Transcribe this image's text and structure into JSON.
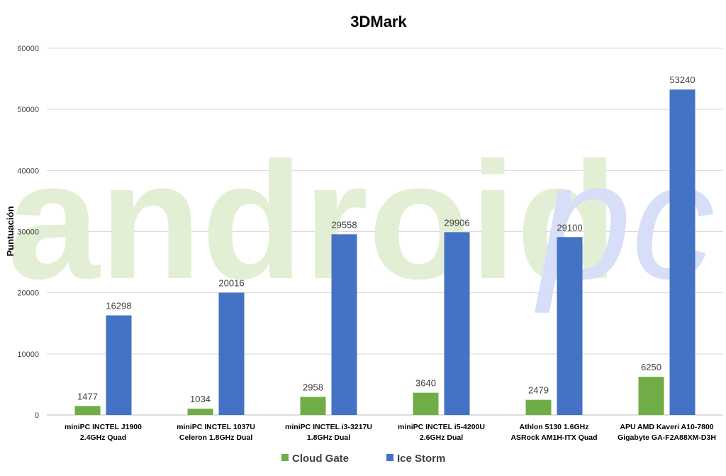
{
  "chart_data": {
    "type": "bar",
    "title": "3DMark",
    "ylabel": "Puntuación",
    "xlabel": "",
    "ylim": [
      0,
      60000
    ],
    "yticks": [
      0,
      10000,
      20000,
      30000,
      40000,
      50000,
      60000
    ],
    "grid": true,
    "legend_position": "bottom",
    "categories": [
      [
        "miniPC INCTEL J1900",
        "2.4GHz Quad"
      ],
      [
        "miniPC INCTEL 1037U",
        "Celeron 1.8GHz Dual"
      ],
      [
        "miniPC INCTEL i3-3217U",
        "1.8GHz Dual"
      ],
      [
        "miniPC INCTEL i5-4200U",
        "2.6GHz Dual"
      ],
      [
        "Athlon 5130 1.6GHz",
        "ASRock AM1H-ITX Quad"
      ],
      [
        "APU AMD Kaveri A10-7800",
        "Gigabyte GA-F2A88XM-D3H"
      ]
    ],
    "series": [
      {
        "name": "Cloud Gate",
        "color": "#70ad47",
        "values": [
          1477,
          1034,
          2958,
          3640,
          2479,
          6250
        ]
      },
      {
        "name": "Ice Storm",
        "color": "#4472c4",
        "values": [
          16298,
          20016,
          29558,
          29906,
          29100,
          53240
        ]
      }
    ]
  },
  "watermark": {
    "main_text": "android",
    "suffix_text": "pc",
    "main_color": "#e3efd5",
    "suffix_color": "#d6def8"
  }
}
